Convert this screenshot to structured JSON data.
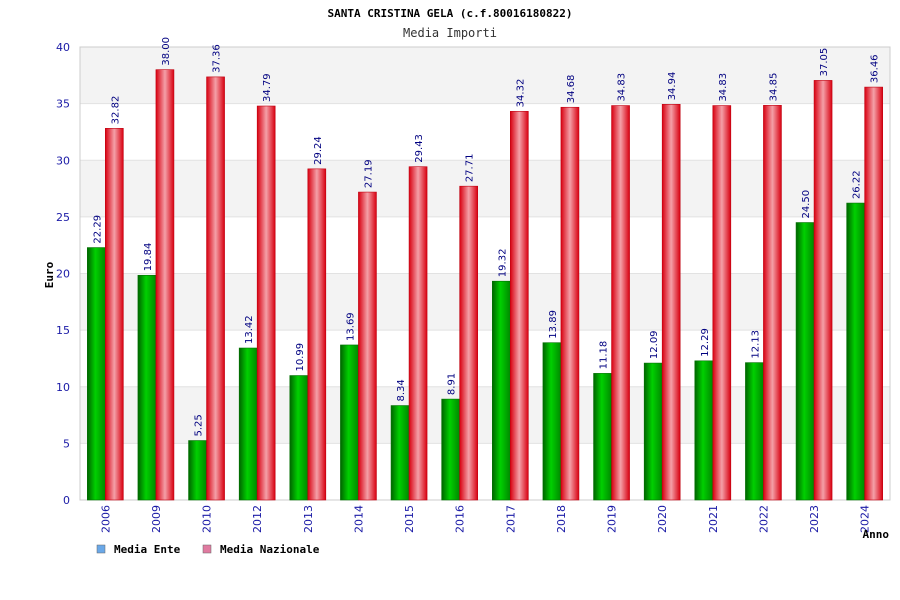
{
  "chart_data": {
    "type": "bar",
    "title": "SANTA CRISTINA GELA (c.f.80016180822)",
    "subtitle": "Media Importi",
    "ylabel": "Euro",
    "xlabel": "Anno",
    "ylim": [
      0,
      40
    ],
    "y_ticks": [
      0,
      5,
      10,
      15,
      20,
      25,
      30,
      35,
      40
    ],
    "categories": [
      "2006",
      "2009",
      "2010",
      "2012",
      "2013",
      "2014",
      "2015",
      "2016",
      "2017",
      "2018",
      "2019",
      "2020",
      "2021",
      "2022",
      "2023",
      "2024"
    ],
    "series": [
      {
        "name": "Media Ente",
        "values": [
          22.29,
          19.84,
          5.25,
          13.42,
          10.99,
          13.69,
          8.34,
          8.91,
          19.32,
          13.89,
          11.18,
          12.09,
          12.29,
          12.13,
          24.5,
          26.22
        ],
        "labels": [
          "22.29",
          "19.84",
          "5.25",
          "13.42",
          "10.99",
          "13.69",
          "8.34",
          "8.91",
          "19.32",
          "13.89",
          "11.18",
          "12.09",
          "12.29",
          "12.13",
          "24.50",
          "26.22"
        ],
        "color": "#00b000"
      },
      {
        "name": "Media Nazionale",
        "values": [
          32.82,
          38.0,
          37.36,
          34.79,
          29.24,
          27.19,
          29.43,
          27.71,
          34.32,
          34.68,
          34.83,
          34.94,
          34.83,
          34.85,
          37.05,
          36.46
        ],
        "labels": [
          "32.82",
          "38.00",
          "37.36",
          "34.79",
          "29.24",
          "27.19",
          "29.43",
          "27.71",
          "34.32",
          "34.68",
          "34.83",
          "34.94",
          "34.83",
          "34.85",
          "37.05",
          "36.46"
        ],
        "color": "#e8101a"
      }
    ],
    "legend": {
      "position": "bottom-left",
      "items": [
        {
          "label": "Media Ente",
          "color": "#6aa8e8"
        },
        {
          "label": "Media Nazionale",
          "color": "#e07aa0"
        }
      ]
    },
    "grid": true
  }
}
